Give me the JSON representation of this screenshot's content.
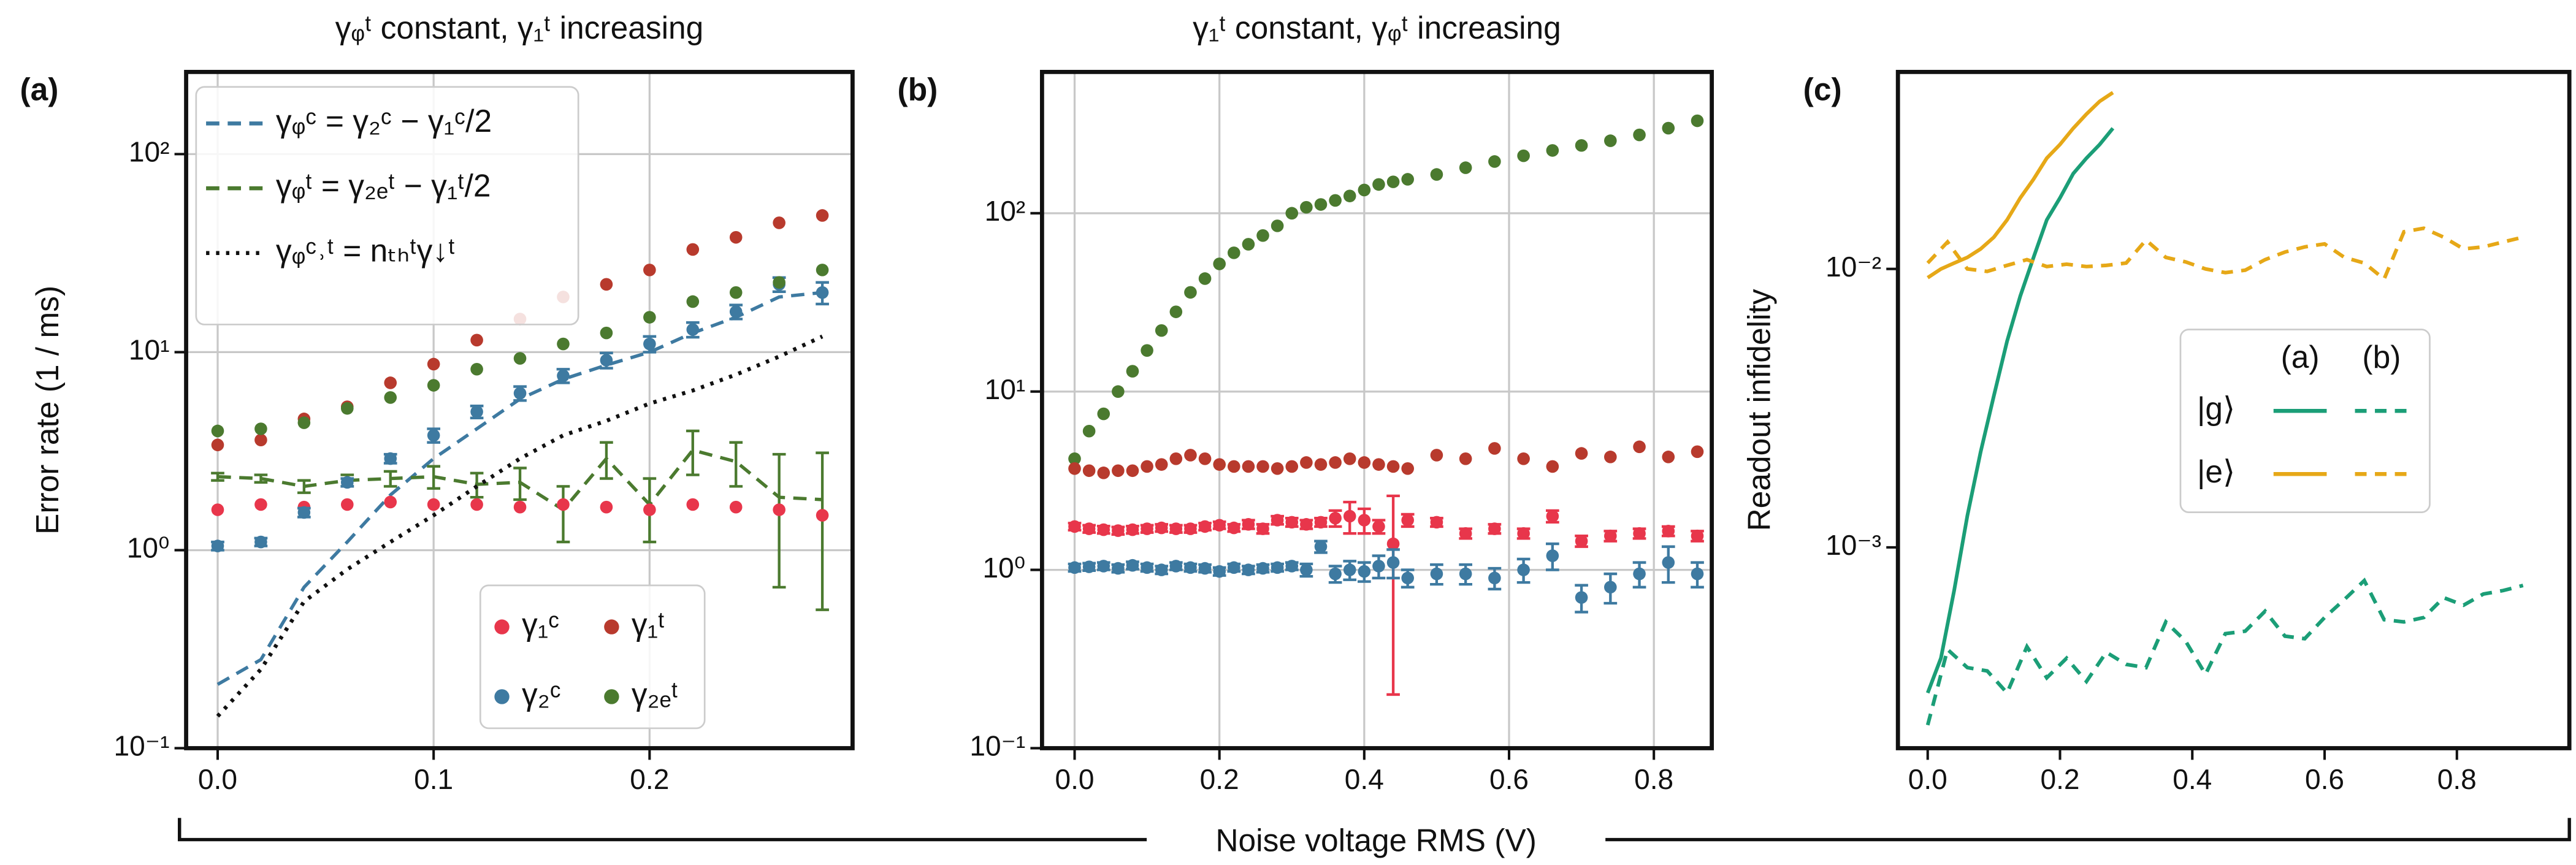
{
  "shared_xlabel": "Noise voltage RMS (V)",
  "chart_data": [
    {
      "type": "scatter",
      "panel_label": "(a)",
      "title": "γᵩᵗ constant, γ₁ᵗ increasing",
      "ylabel": "Error rate (1 / ms)",
      "log_y": true,
      "grid": true,
      "xlim": [
        -0.0146,
        0.294
      ],
      "ylim": [
        0.1,
        260
      ],
      "xticks": [
        {
          "value": 0,
          "label": "0.0"
        },
        0.1,
        0.2
      ],
      "yticks": [
        {
          "value": 0.1,
          "label": "10⁻¹"
        },
        {
          "value": 1,
          "label": "10⁰"
        },
        {
          "value": 10,
          "label": "10¹"
        },
        {
          "value": 100,
          "label": "10²"
        }
      ],
      "x": [
        0,
        0.02,
        0.04,
        0.06,
        0.08,
        0.1,
        0.12,
        0.14,
        0.16,
        0.18,
        0.2,
        0.22,
        0.24,
        0.26,
        0.28
      ],
      "series": [
        {
          "name": "γᵩᶜ = γ₂ᶜ − γ₁ᶜ/2",
          "color": "#3e7aa1",
          "style": "dashed",
          "legend": "upper",
          "values": [
            0.21,
            0.28,
            0.65,
            1.1,
            1.9,
            2.9,
            4.1,
            5.8,
            7.3,
            8.6,
            10,
            12.5,
            15,
            19,
            20
          ]
        },
        {
          "name": "γᵩᵗ = γ₂ₑᵗ − γ₁ᵗ/2",
          "color": "#4b7a2f",
          "style": "dashed",
          "legend": "upper",
          "values": [
            2.35,
            2.3,
            2.1,
            2.25,
            2.3,
            2.35,
            2.15,
            2.2,
            1.6,
            2.9,
            1.7,
            3.2,
            2.8,
            1.85,
            1.8
          ],
          "errors": [
            0.1,
            0.1,
            0.15,
            0.15,
            0.2,
            0.3,
            0.3,
            0.4,
            0.5,
            0.6,
            0.6,
            0.8,
            0.7,
            1.2,
            1.3
          ]
        },
        {
          "name": "γᵩᶜ˒ᵗ = nₜₕᵗγ↓ᵗ",
          "color": "#111111",
          "style": "dotted",
          "legend": "upper",
          "values": [
            0.145,
            0.25,
            0.55,
            0.8,
            1.1,
            1.5,
            2.1,
            2.9,
            3.8,
            4.5,
            5.5,
            6.4,
            7.7,
            9.5,
            12
          ]
        },
        {
          "name": "γ₁ᶜ",
          "color": "#e8364b",
          "style": "marker",
          "legend": "lower",
          "values": [
            1.6,
            1.7,
            1.65,
            1.7,
            1.75,
            1.7,
            1.7,
            1.65,
            1.7,
            1.65,
            1.6,
            1.7,
            1.65,
            1.6,
            1.5
          ]
        },
        {
          "name": "γ₂ᶜ",
          "color": "#3e7aa1",
          "style": "marker",
          "legend": "lower",
          "values": [
            1.05,
            1.1,
            1.55,
            2.2,
            2.9,
            3.8,
            5.0,
            6.2,
            7.6,
            9.1,
            11,
            13,
            16,
            22,
            20
          ],
          "errors": [
            0.05,
            0.05,
            0.08,
            0.1,
            0.15,
            0.3,
            0.35,
            0.5,
            0.6,
            0.8,
            1.0,
            1.1,
            1.3,
            1.8,
            2.5
          ]
        },
        {
          "name": "γ₁ᵗ",
          "color": "#b83a2d",
          "style": "marker",
          "legend": "lower",
          "values": [
            3.4,
            3.6,
            4.6,
            5.3,
            7.0,
            8.7,
            11.5,
            14.7,
            19,
            22,
            26,
            33,
            38,
            45,
            49
          ]
        },
        {
          "name": "γ₂ₑᵗ",
          "color": "#4b7a2f",
          "style": "marker",
          "legend": "lower",
          "values": [
            4.0,
            4.1,
            4.4,
            5.2,
            5.9,
            6.8,
            8.2,
            9.3,
            11,
            12.5,
            15,
            18,
            20,
            22.5,
            26
          ]
        }
      ]
    },
    {
      "type": "scatter",
      "panel_label": "(b)",
      "title": "γ₁ᵗ constant, γᵩᵗ increasing",
      "log_y": true,
      "grid": true,
      "xlim": [
        -0.045,
        0.88
      ],
      "ylim": [
        0.1,
        620
      ],
      "xticks": [
        {
          "value": 0,
          "label": "0.0"
        },
        0.2,
        0.4,
        0.6,
        0.8
      ],
      "yticks": [
        {
          "value": 0.1,
          "label": "10⁻¹"
        },
        {
          "value": 1,
          "label": "10⁰"
        },
        {
          "value": 10,
          "label": "10¹"
        },
        {
          "value": 100,
          "label": "10²"
        }
      ],
      "x": [
        0,
        0.02,
        0.04,
        0.06,
        0.08,
        0.1,
        0.12,
        0.14,
        0.16,
        0.18,
        0.2,
        0.22,
        0.24,
        0.26,
        0.28,
        0.3,
        0.32,
        0.34,
        0.36,
        0.38,
        0.4,
        0.42,
        0.44,
        0.46,
        0.5,
        0.54,
        0.58,
        0.62,
        0.66,
        0.7,
        0.74,
        0.78,
        0.82,
        0.86
      ],
      "series": [
        {
          "color": "#4b7a2f",
          "style": "marker",
          "values": [
            4.2,
            6,
            7.5,
            10,
            13,
            17,
            22,
            28,
            36,
            43,
            52,
            60,
            67,
            75,
            85,
            100,
            108,
            112,
            118,
            125,
            135,
            145,
            150,
            155,
            165,
            180,
            195,
            210,
            225,
            240,
            255,
            275,
            300,
            330
          ]
        },
        {
          "color": "#b83a2d",
          "style": "marker",
          "values": [
            3.7,
            3.6,
            3.5,
            3.6,
            3.6,
            3.8,
            3.9,
            4.2,
            4.4,
            4.2,
            3.9,
            3.8,
            3.8,
            3.8,
            3.7,
            3.8,
            4.0,
            3.9,
            4.0,
            4.2,
            4.0,
            3.9,
            3.8,
            3.7,
            4.4,
            4.2,
            4.8,
            4.2,
            3.8,
            4.5,
            4.3,
            4.9,
            4.3,
            4.6
          ]
        },
        {
          "color": "#e8364b",
          "style": "marker",
          "values": [
            1.75,
            1.7,
            1.68,
            1.66,
            1.68,
            1.7,
            1.72,
            1.7,
            1.7,
            1.75,
            1.78,
            1.72,
            1.8,
            1.7,
            1.9,
            1.85,
            1.8,
            1.85,
            1.95,
            2.0,
            1.9,
            1.75,
            1.4,
            1.9,
            1.85,
            1.6,
            1.7,
            1.6,
            2.0,
            1.45,
            1.55,
            1.6,
            1.65,
            1.55
          ],
          "errors": [
            0.08,
            0.08,
            0.08,
            0.08,
            0.08,
            0.08,
            0.08,
            0.08,
            0.08,
            0.08,
            0.08,
            0.08,
            0.1,
            0.1,
            0.1,
            0.1,
            0.1,
            0.1,
            0.2,
            0.4,
            0.3,
            0.15,
            1.2,
            0.15,
            0.1,
            0.1,
            0.1,
            0.1,
            0.15,
            0.1,
            0.1,
            0.1,
            0.1,
            0.1
          ]
        },
        {
          "color": "#3e7aa1",
          "style": "marker",
          "values": [
            1.03,
            1.04,
            1.05,
            1.02,
            1.06,
            1.03,
            1.0,
            1.05,
            1.03,
            1.02,
            0.98,
            1.03,
            1.0,
            1.02,
            1.03,
            1.05,
            1.0,
            1.35,
            0.95,
            1.0,
            0.98,
            1.05,
            1.1,
            0.9,
            0.95,
            0.95,
            0.9,
            1.0,
            1.2,
            0.7,
            0.8,
            0.95,
            1.1,
            0.95
          ],
          "errors": [
            0.05,
            0.05,
            0.05,
            0.05,
            0.05,
            0.05,
            0.05,
            0.05,
            0.05,
            0.05,
            0.05,
            0.05,
            0.05,
            0.05,
            0.05,
            0.05,
            0.08,
            0.1,
            0.1,
            0.12,
            0.12,
            0.15,
            0.2,
            0.1,
            0.12,
            0.12,
            0.12,
            0.15,
            0.2,
            0.12,
            0.15,
            0.15,
            0.25,
            0.15
          ]
        }
      ]
    },
    {
      "type": "line",
      "panel_label": "(c)",
      "ylabel": "Readout infidelity",
      "log_y": true,
      "grid": false,
      "xlim": [
        -0.045,
        0.97
      ],
      "ylim": [
        0.00019,
        0.051
      ],
      "xticks": [
        {
          "value": 0,
          "label": "0.0"
        },
        0.2,
        0.4,
        0.6,
        0.8
      ],
      "yticks": [
        {
          "value": 0.001,
          "label": "10⁻³"
        },
        {
          "value": 0.01,
          "label": "10⁻²"
        }
      ],
      "legend_columns": [
        "(a)",
        "(b)"
      ],
      "series": [
        {
          "name": "|g⟩",
          "color": "#1b9e77",
          "runs": [
            {
              "x": [
                0,
                0.02,
                0.04,
                0.06,
                0.08,
                0.1,
                0.12,
                0.14,
                0.16,
                0.18,
                0.2,
                0.22,
                0.24,
                0.26,
                0.28
              ],
              "values": [
                0.0003,
                0.0004,
                0.0007,
                0.0013,
                0.0022,
                0.0035,
                0.0055,
                0.008,
                0.011,
                0.015,
                0.018,
                0.022,
                0.025,
                0.028,
                0.032
              ]
            },
            {
              "x": [
                0,
                0.03,
                0.06,
                0.09,
                0.12,
                0.15,
                0.18,
                0.21,
                0.24,
                0.27,
                0.3,
                0.33,
                0.36,
                0.39,
                0.42,
                0.45,
                0.48,
                0.51,
                0.54,
                0.57,
                0.6,
                0.63,
                0.66,
                0.69,
                0.72,
                0.75,
                0.78,
                0.81,
                0.84,
                0.87,
                0.9
              ],
              "values": [
                0.00023,
                0.00043,
                0.00037,
                0.00036,
                0.0003,
                0.00044,
                0.00034,
                0.0004,
                0.00033,
                0.00042,
                0.00038,
                0.00037,
                0.00054,
                0.00046,
                0.00035,
                0.00049,
                0.0005,
                0.00059,
                0.00048,
                0.00047,
                0.00056,
                0.00065,
                0.00076,
                0.00055,
                0.00054,
                0.00056,
                0.00066,
                0.00062,
                0.00068,
                0.0007,
                0.00073
              ]
            }
          ]
        },
        {
          "name": "|e⟩",
          "color": "#e6a817",
          "runs": [
            {
              "x": [
                0,
                0.02,
                0.04,
                0.06,
                0.08,
                0.1,
                0.12,
                0.14,
                0.16,
                0.18,
                0.2,
                0.22,
                0.24,
                0.26,
                0.28
              ],
              "values": [
                0.0093,
                0.01,
                0.0105,
                0.011,
                0.0118,
                0.013,
                0.015,
                0.018,
                0.021,
                0.025,
                0.028,
                0.032,
                0.036,
                0.04,
                0.043
              ]
            },
            {
              "x": [
                0,
                0.03,
                0.06,
                0.09,
                0.12,
                0.15,
                0.18,
                0.21,
                0.24,
                0.27,
                0.3,
                0.33,
                0.36,
                0.39,
                0.42,
                0.45,
                0.48,
                0.51,
                0.54,
                0.57,
                0.6,
                0.63,
                0.66,
                0.69,
                0.72,
                0.75,
                0.78,
                0.81,
                0.84,
                0.87,
                0.9
              ],
              "values": [
                0.0105,
                0.0125,
                0.01,
                0.0098,
                0.0103,
                0.0108,
                0.0102,
                0.0104,
                0.0102,
                0.0103,
                0.0105,
                0.0127,
                0.011,
                0.0106,
                0.01,
                0.0097,
                0.0099,
                0.0108,
                0.0115,
                0.012,
                0.0123,
                0.011,
                0.0105,
                0.0092,
                0.0136,
                0.014,
                0.013,
                0.0118,
                0.012,
                0.0125,
                0.013
              ]
            }
          ]
        }
      ]
    }
  ]
}
